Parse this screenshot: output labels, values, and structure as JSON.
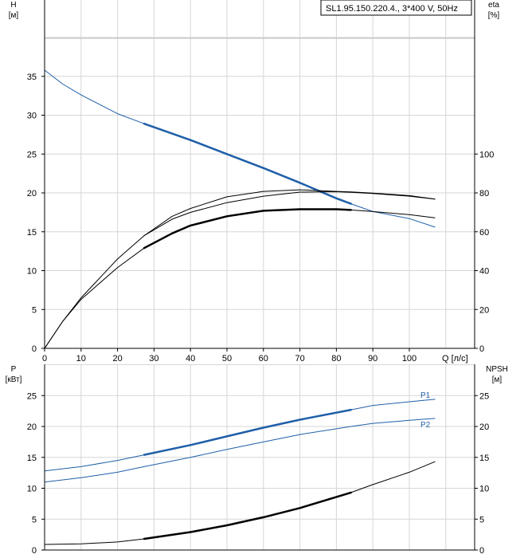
{
  "chart_data": [
    {
      "type": "line",
      "title": "SL1.95.150.220.4., 3*400 V, 50Hz",
      "xlabel": "Q [л/с]",
      "ylabel_left": [
        "H",
        "[м]"
      ],
      "ylabel_right": [
        "eta",
        "[%]"
      ],
      "xlim": [
        0,
        110
      ],
      "ylim_left": [
        0,
        40
      ],
      "ylim_right": [
        0,
        160
      ],
      "x_ticks": [
        0,
        10,
        20,
        30,
        40,
        50,
        60,
        70,
        80,
        90,
        100
      ],
      "y_ticks_left": [
        0,
        5,
        10,
        15,
        20,
        25,
        30,
        35
      ],
      "y_ticks_right": [
        0,
        20,
        40,
        60,
        80,
        100
      ],
      "grid": true,
      "series": [
        {
          "axis": "left",
          "color": "#1f5fa8",
          "width": 1,
          "x": [
            0,
            5,
            10,
            20,
            27.3,
            40,
            50,
            60,
            70,
            80,
            84,
            90,
            100,
            107
          ],
          "y": [
            35.8,
            34.0,
            32.6,
            30.2,
            28.9,
            26.8,
            25.0,
            23.2,
            21.3,
            19.3,
            18.6,
            17.6,
            16.7,
            15.6
          ]
        },
        {
          "axis": "left",
          "color": "#1f5fa8",
          "width": 2.5,
          "x": [
            27.3,
            40,
            50,
            60,
            70,
            80,
            84
          ],
          "y": [
            28.9,
            26.8,
            25.0,
            23.2,
            21.3,
            19.3,
            18.6
          ]
        },
        {
          "axis": "right",
          "color": "#000000",
          "width": 1,
          "x": [
            0,
            5,
            10,
            20,
            27.3,
            35,
            40,
            50,
            60,
            70,
            80,
            84,
            90,
            100,
            107
          ],
          "y": [
            0,
            14,
            26,
            46,
            58,
            68,
            72,
            78,
            80.8,
            81.6,
            80.8,
            80.5,
            79.9,
            78.6,
            76.8
          ]
        },
        {
          "axis": "right",
          "color": "#000000",
          "width": 1,
          "x": [
            27.3,
            35,
            40,
            50,
            60,
            70,
            80,
            84,
            90,
            100,
            107
          ],
          "y": [
            58,
            66.5,
            70,
            75,
            78.3,
            80.4,
            80.6,
            80.3,
            79.7,
            78.3,
            76.8
          ]
        },
        {
          "axis": "left",
          "color": "#000000",
          "width": 1,
          "x": [
            0,
            5,
            10,
            20,
            27.3,
            35,
            40,
            50,
            60,
            70,
            80,
            84,
            90,
            100,
            107
          ],
          "y": [
            0,
            3.5,
            6.3,
            10.4,
            12.9,
            14.8,
            15.8,
            17.0,
            17.7,
            17.9,
            17.9,
            17.8,
            17.6,
            17.2,
            16.8
          ]
        },
        {
          "axis": "left",
          "color": "#000000",
          "width": 2.5,
          "x": [
            27.3,
            35,
            40,
            50,
            60,
            70,
            80,
            84
          ],
          "y": [
            12.9,
            14.8,
            15.8,
            17.0,
            17.7,
            17.9,
            17.9,
            17.8
          ]
        }
      ]
    },
    {
      "type": "line",
      "xlabel": "",
      "ylabel_left": [
        "P",
        "[кВт]"
      ],
      "ylabel_right": [
        "NPSH",
        "[м]"
      ],
      "xlim": [
        0,
        110
      ],
      "ylim_left": [
        0,
        30
      ],
      "ylim_right": [
        0,
        30
      ],
      "y_ticks_left": [
        0,
        5,
        10,
        15,
        20,
        25
      ],
      "y_ticks_right": [
        0,
        5,
        10,
        15,
        20,
        25
      ],
      "grid": true,
      "series": [
        {
          "name": "P1",
          "axis": "left",
          "color": "#1f5fa8",
          "width": 1,
          "x": [
            0,
            10,
            20,
            27.3,
            40,
            50,
            60,
            70,
            84,
            90,
            100,
            107
          ],
          "y": [
            12.8,
            13.5,
            14.5,
            15.4,
            17.0,
            18.4,
            19.8,
            21.1,
            22.7,
            23.4,
            24.0,
            24.4
          ]
        },
        {
          "axis": "left",
          "color": "#1f5fa8",
          "width": 2.5,
          "x": [
            27.3,
            40,
            50,
            60,
            70,
            84
          ],
          "y": [
            15.4,
            17.0,
            18.4,
            19.8,
            21.1,
            22.7
          ]
        },
        {
          "name": "P2",
          "axis": "left",
          "color": "#1f5fa8",
          "width": 1,
          "x": [
            0,
            10,
            20,
            27.3,
            40,
            50,
            60,
            70,
            84,
            90,
            100,
            107
          ],
          "y": [
            11.0,
            11.7,
            12.6,
            13.5,
            15.0,
            16.3,
            17.5,
            18.7,
            20.0,
            20.5,
            21.0,
            21.3
          ]
        },
        {
          "axis": "right",
          "color": "#000000",
          "width": 1,
          "x": [
            0,
            10,
            20,
            27.3,
            40,
            50,
            60,
            70,
            84,
            90,
            100,
            107
          ],
          "y": [
            0.9,
            1.0,
            1.3,
            1.8,
            2.9,
            4.0,
            5.3,
            6.8,
            9.3,
            10.6,
            12.6,
            14.3
          ]
        },
        {
          "axis": "right",
          "color": "#000000",
          "width": 2.5,
          "x": [
            27.3,
            40,
            50,
            60,
            70,
            84
          ],
          "y": [
            1.8,
            2.9,
            4.0,
            5.3,
            6.8,
            9.3
          ]
        }
      ]
    }
  ]
}
